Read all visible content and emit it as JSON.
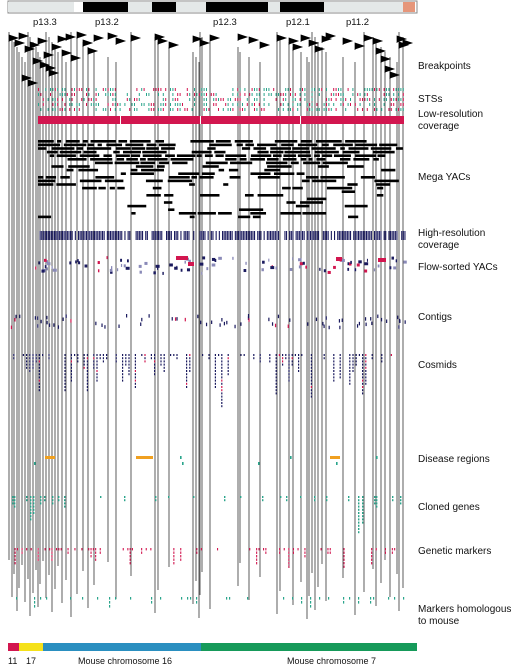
{
  "bands": [
    "p13.3",
    "p13.2",
    "p12.3",
    "p12.1",
    "p11.2"
  ],
  "tracks": [
    "Breakpoints",
    "STSs",
    "Low-resolution coverage",
    "Mega YACs",
    "High-resolution coverage",
    "Flow-sorted YACs",
    "Contigs",
    "Cosmids",
    "Disease regions",
    "Cloned genes",
    "Genetic markers",
    "Markers homologous to mouse"
  ],
  "bottom_labels": [
    "11",
    "17",
    "Mouse chromosome 16",
    "Mouse chromosome 7"
  ],
  "colors": {
    "navy": "#1a1a5e",
    "crimson": "#d2164f",
    "teal": "#2aa58c",
    "orange": "#f0a020",
    "blue": "#2a8fc0",
    "green": "#169a5a",
    "yellow": "#f5e11a",
    "salmon": "#e6967a"
  }
}
